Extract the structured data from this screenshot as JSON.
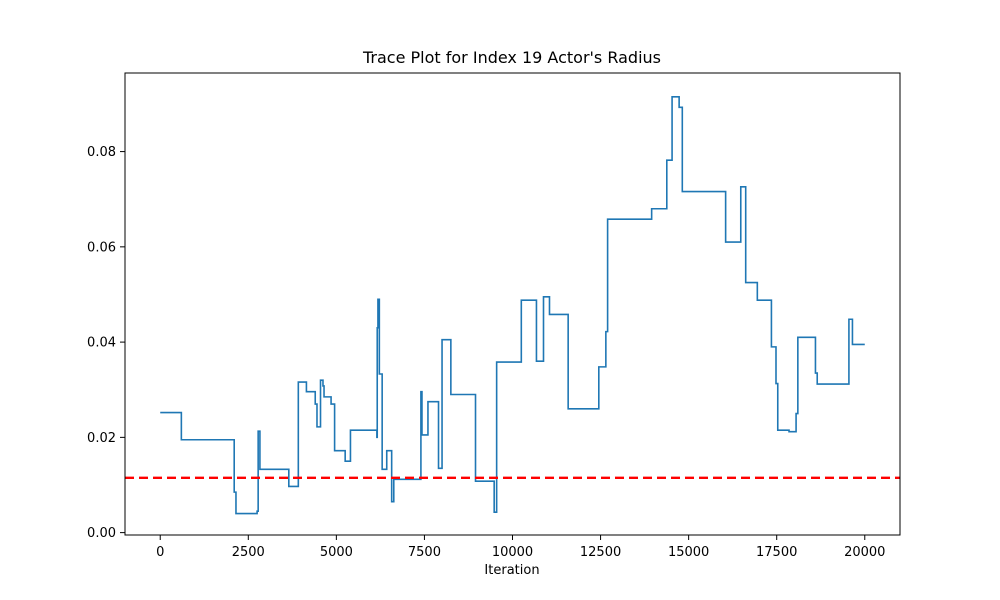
{
  "chart_data": {
    "type": "line",
    "title": "Trace Plot for Index 19 Actor's Radius",
    "xlabel": "Iteration",
    "ylabel": "",
    "xlim": [
      -1000,
      21000
    ],
    "ylim": [
      -0.0005,
      0.0965
    ],
    "xticks": [
      0,
      2500,
      5000,
      7500,
      10000,
      12500,
      15000,
      17500,
      20000
    ],
    "yticks": [
      0.0,
      0.02,
      0.04,
      0.06,
      0.08
    ],
    "ytick_labels": [
      "0.00",
      "0.02",
      "0.04",
      "0.06",
      "0.08"
    ],
    "grid": false,
    "series": [
      {
        "style": "step",
        "color": "#1f77b4",
        "points": [
          [
            0,
            0.0252
          ],
          [
            600,
            0.0195
          ],
          [
            2100,
            0.0085
          ],
          [
            2150,
            0.004
          ],
          [
            2750,
            0.0045
          ],
          [
            2780,
            0.0213
          ],
          [
            2830,
            0.0133
          ],
          [
            3650,
            0.0097
          ],
          [
            3920,
            0.0316
          ],
          [
            4150,
            0.0296
          ],
          [
            4400,
            0.027
          ],
          [
            4450,
            0.0222
          ],
          [
            4550,
            0.032
          ],
          [
            4620,
            0.0308
          ],
          [
            4650,
            0.0285
          ],
          [
            4850,
            0.027
          ],
          [
            4950,
            0.0172
          ],
          [
            5250,
            0.015
          ],
          [
            5400,
            0.0215
          ],
          [
            6150,
            0.02
          ],
          [
            6160,
            0.043
          ],
          [
            6180,
            0.049
          ],
          [
            6220,
            0.0333
          ],
          [
            6300,
            0.0133
          ],
          [
            6430,
            0.0172
          ],
          [
            6570,
            0.0065
          ],
          [
            6630,
            0.0112
          ],
          [
            7400,
            0.0296
          ],
          [
            7430,
            0.0205
          ],
          [
            7600,
            0.0275
          ],
          [
            7900,
            0.0135
          ],
          [
            8000,
            0.0405
          ],
          [
            8250,
            0.029
          ],
          [
            8950,
            0.0108
          ],
          [
            9480,
            0.0043
          ],
          [
            9550,
            0.0358
          ],
          [
            10250,
            0.0488
          ],
          [
            10680,
            0.036
          ],
          [
            10880,
            0.0495
          ],
          [
            11050,
            0.0458
          ],
          [
            11580,
            0.026
          ],
          [
            12450,
            0.0348
          ],
          [
            12650,
            0.0422
          ],
          [
            12700,
            0.0658
          ],
          [
            13950,
            0.068
          ],
          [
            14380,
            0.0782
          ],
          [
            14530,
            0.0915
          ],
          [
            14730,
            0.0893
          ],
          [
            14820,
            0.0716
          ],
          [
            16050,
            0.061
          ],
          [
            16480,
            0.0726
          ],
          [
            16620,
            0.0525
          ],
          [
            16950,
            0.0488
          ],
          [
            17350,
            0.039
          ],
          [
            17480,
            0.0313
          ],
          [
            17530,
            0.0215
          ],
          [
            17850,
            0.0212
          ],
          [
            18050,
            0.025
          ],
          [
            18100,
            0.041
          ],
          [
            18600,
            0.0335
          ],
          [
            18650,
            0.0312
          ],
          [
            19550,
            0.0448
          ],
          [
            19650,
            0.0395
          ],
          [
            20000,
            0.0395
          ]
        ]
      }
    ],
    "reference_lines": [
      {
        "orientation": "horizontal",
        "y": 0.0115,
        "color": "#ff0000",
        "style": "dashed"
      }
    ]
  }
}
